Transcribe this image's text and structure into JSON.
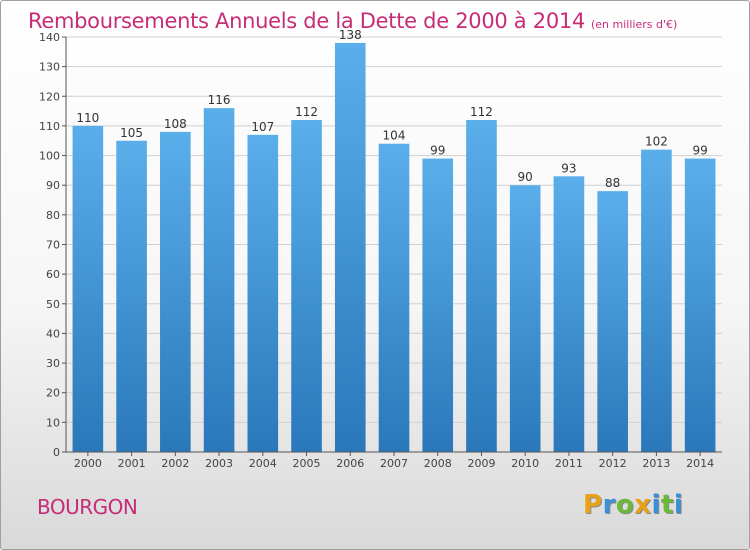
{
  "header": {
    "title": "Remboursements Annuels de la Dette de 2000 à 2014",
    "subtitle": "(en milliers d'€)"
  },
  "commune": "BOURGON",
  "logo": {
    "text": "Proxiti",
    "letters": [
      {
        "ch": "P",
        "color": "#e8a21a"
      },
      {
        "ch": "r",
        "color": "#3a8fd6"
      },
      {
        "ch": "o",
        "color": "#6cb83a"
      },
      {
        "ch": "x",
        "color": "#e8a21a"
      },
      {
        "ch": "i",
        "color": "#3a8fd6"
      },
      {
        "ch": "t",
        "color": "#6cb83a"
      },
      {
        "ch": "i",
        "color": "#3a8fd6"
      }
    ]
  },
  "colors": {
    "bar_top": "#5aaeea",
    "bar_bottom": "#2a78ba",
    "grid": "#d0d0d0",
    "axis": "#555555",
    "title": "#c72c77"
  },
  "chart_data": {
    "type": "bar",
    "title": "Remboursements Annuels de la Dette de 2000 à 2014",
    "subtitle": "(en milliers d'€)",
    "xlabel": "",
    "ylabel": "",
    "categories": [
      "2000",
      "2001",
      "2002",
      "2003",
      "2004",
      "2005",
      "2006",
      "2007",
      "2008",
      "2009",
      "2010",
      "2011",
      "2012",
      "2013",
      "2014"
    ],
    "values": [
      110,
      105,
      108,
      116,
      107,
      112,
      138,
      104,
      99,
      112,
      90,
      93,
      88,
      102,
      99
    ],
    "ylim": [
      0,
      140
    ],
    "yticks": [
      0,
      10,
      20,
      30,
      40,
      50,
      60,
      70,
      80,
      90,
      100,
      110,
      120,
      130,
      140
    ],
    "grid": true,
    "legend": "none"
  }
}
